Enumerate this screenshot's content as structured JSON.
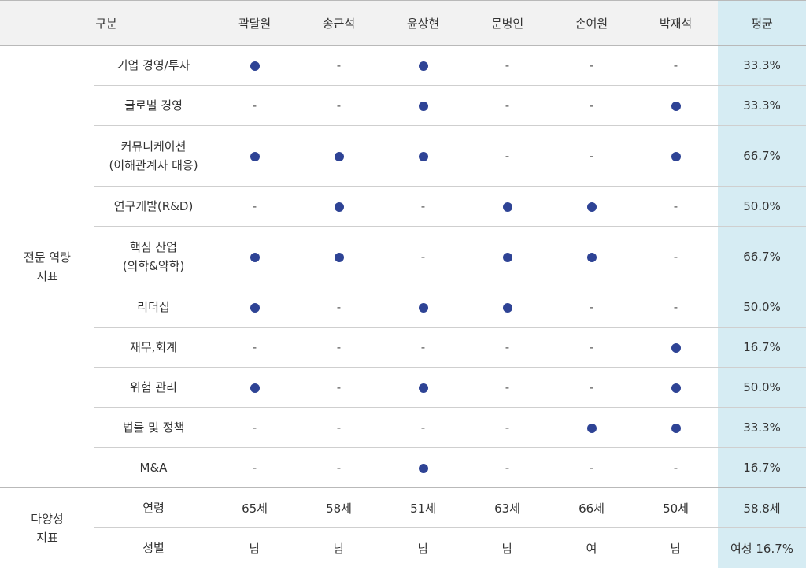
{
  "header": {
    "group_label": "구분",
    "people": [
      "곽달원",
      "송근석",
      "윤상현",
      "문병인",
      "손여원",
      "박재석"
    ],
    "avg_label": "평균"
  },
  "groups": [
    {
      "label": [
        "전문 역량",
        "지표"
      ],
      "rows": [
        {
          "label": [
            "기업 경영/투자"
          ],
          "marks": [
            true,
            false,
            true,
            false,
            false,
            false
          ],
          "avg": "33.3%"
        },
        {
          "label": [
            "글로벌 경영"
          ],
          "marks": [
            false,
            false,
            true,
            false,
            false,
            true
          ],
          "avg": "33.3%"
        },
        {
          "label": [
            "커뮤니케이션",
            "(이해관계자 대응)"
          ],
          "marks": [
            true,
            true,
            true,
            false,
            false,
            true
          ],
          "avg": "66.7%"
        },
        {
          "label": [
            "연구개발(R&D)"
          ],
          "marks": [
            false,
            true,
            false,
            true,
            true,
            false
          ],
          "avg": "50.0%"
        },
        {
          "label": [
            "핵심 산업",
            "(의학&약학)"
          ],
          "marks": [
            true,
            true,
            false,
            true,
            true,
            false
          ],
          "avg": "66.7%"
        },
        {
          "label": [
            "리더십"
          ],
          "marks": [
            true,
            false,
            true,
            true,
            false,
            false
          ],
          "avg": "50.0%"
        },
        {
          "label": [
            "재무,회계"
          ],
          "marks": [
            false,
            false,
            false,
            false,
            false,
            true
          ],
          "avg": "16.7%"
        },
        {
          "label": [
            "위험 관리"
          ],
          "marks": [
            true,
            false,
            true,
            false,
            false,
            true
          ],
          "avg": "50.0%"
        },
        {
          "label": [
            "법률 및 정책"
          ],
          "marks": [
            false,
            false,
            false,
            false,
            true,
            true
          ],
          "avg": "33.3%"
        },
        {
          "label": [
            "M&A"
          ],
          "marks": [
            false,
            false,
            true,
            false,
            false,
            false
          ],
          "avg": "16.7%"
        }
      ]
    },
    {
      "label": [
        "다양성",
        "지표"
      ],
      "rows": [
        {
          "label": [
            "연령"
          ],
          "values": [
            "65세",
            "58세",
            "51세",
            "63세",
            "66세",
            "50세"
          ],
          "avg": "58.8세"
        },
        {
          "label": [
            "성별"
          ],
          "values": [
            "남",
            "남",
            "남",
            "남",
            "여",
            "남"
          ],
          "avg": "여성 16.7%"
        }
      ]
    }
  ],
  "dash_symbol": "-",
  "colors": {
    "header_bg": "#f2f2f2",
    "avg_bg": "#d6ecf3",
    "dot": "#2e4395"
  }
}
